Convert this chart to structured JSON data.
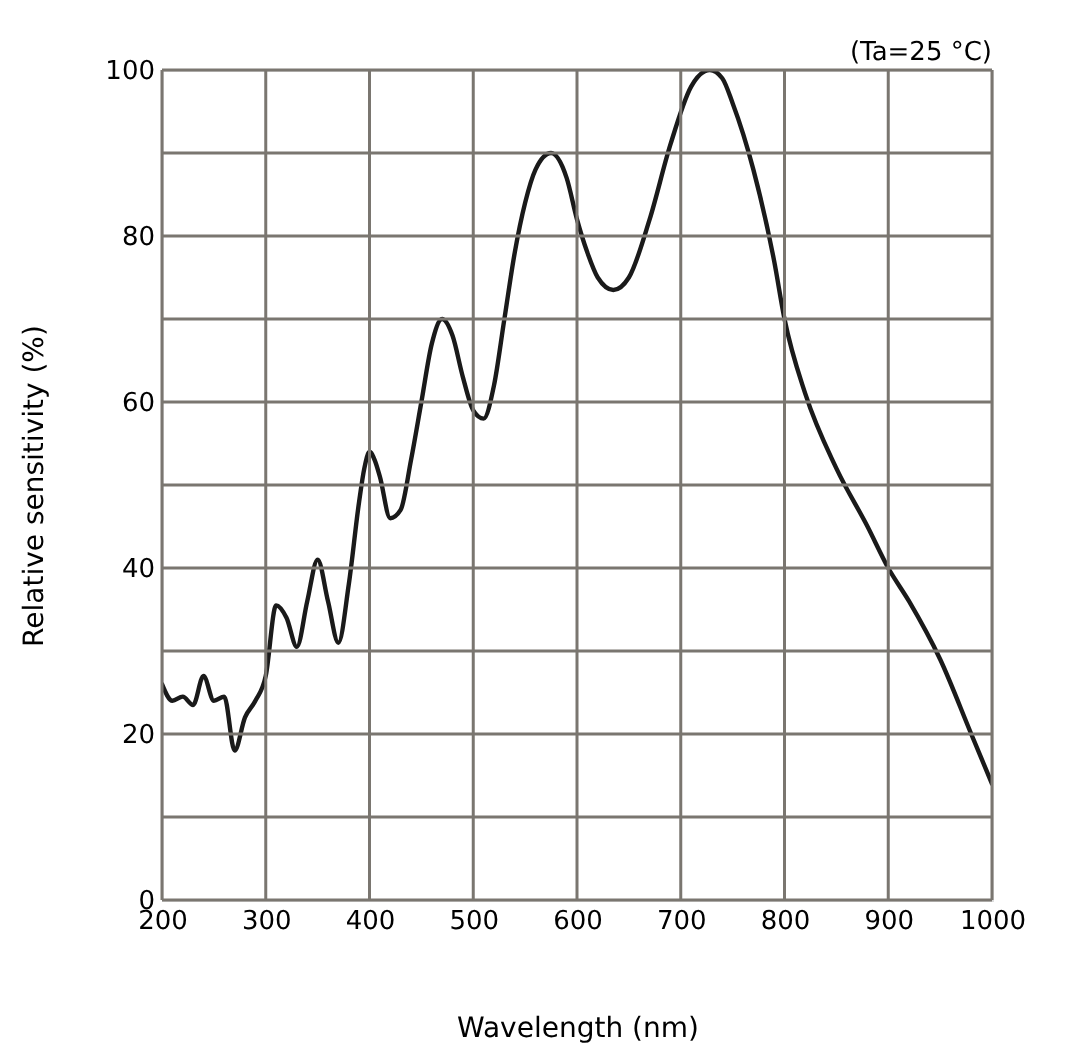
{
  "chart_data": {
    "type": "line",
    "xlabel": "Wavelength (nm)",
    "ylabel": "Relative sensitivity (%)",
    "annotations": [
      "(Ta=25 °C)"
    ],
    "x": [
      200,
      210,
      220,
      230,
      240,
      250,
      260,
      270,
      280,
      290,
      300,
      310,
      320,
      330,
      340,
      350,
      360,
      370,
      380,
      390,
      395,
      400,
      405,
      410,
      420,
      430,
      440,
      450,
      460,
      470,
      480,
      490,
      500,
      510,
      520,
      530,
      540,
      550,
      560,
      575,
      590,
      600,
      610,
      620,
      635,
      650,
      670,
      690,
      710,
      728,
      740,
      750,
      770,
      790,
      800,
      820,
      850,
      880,
      900,
      920,
      950,
      980,
      1000
    ],
    "series": [
      {
        "color": "#1a1a1a",
        "values": [
          26,
          24,
          24.5,
          23.5,
          27,
          24,
          24.5,
          18,
          22,
          24,
          27,
          35.5,
          34,
          30.5,
          36,
          41,
          36,
          31,
          38,
          48,
          52,
          54,
          53,
          51,
          46,
          47,
          53,
          60,
          67,
          70,
          68,
          63,
          59,
          58,
          62,
          70,
          78,
          84,
          88,
          90,
          87,
          82,
          78,
          75,
          73.5,
          75,
          82,
          91,
          98,
          100,
          99,
          96,
          88,
          77,
          70,
          61,
          52,
          45,
          40,
          36,
          29,
          20,
          14
        ]
      }
    ],
    "xlim": [
      200,
      1000
    ],
    "xticks": [
      200,
      300,
      400,
      500,
      600,
      700,
      800,
      900,
      1000
    ],
    "ylim": [
      0,
      100
    ],
    "yticks": [
      0,
      20,
      40,
      60,
      80,
      100
    ],
    "grid": true,
    "line_style": "solid",
    "marker": "none"
  }
}
